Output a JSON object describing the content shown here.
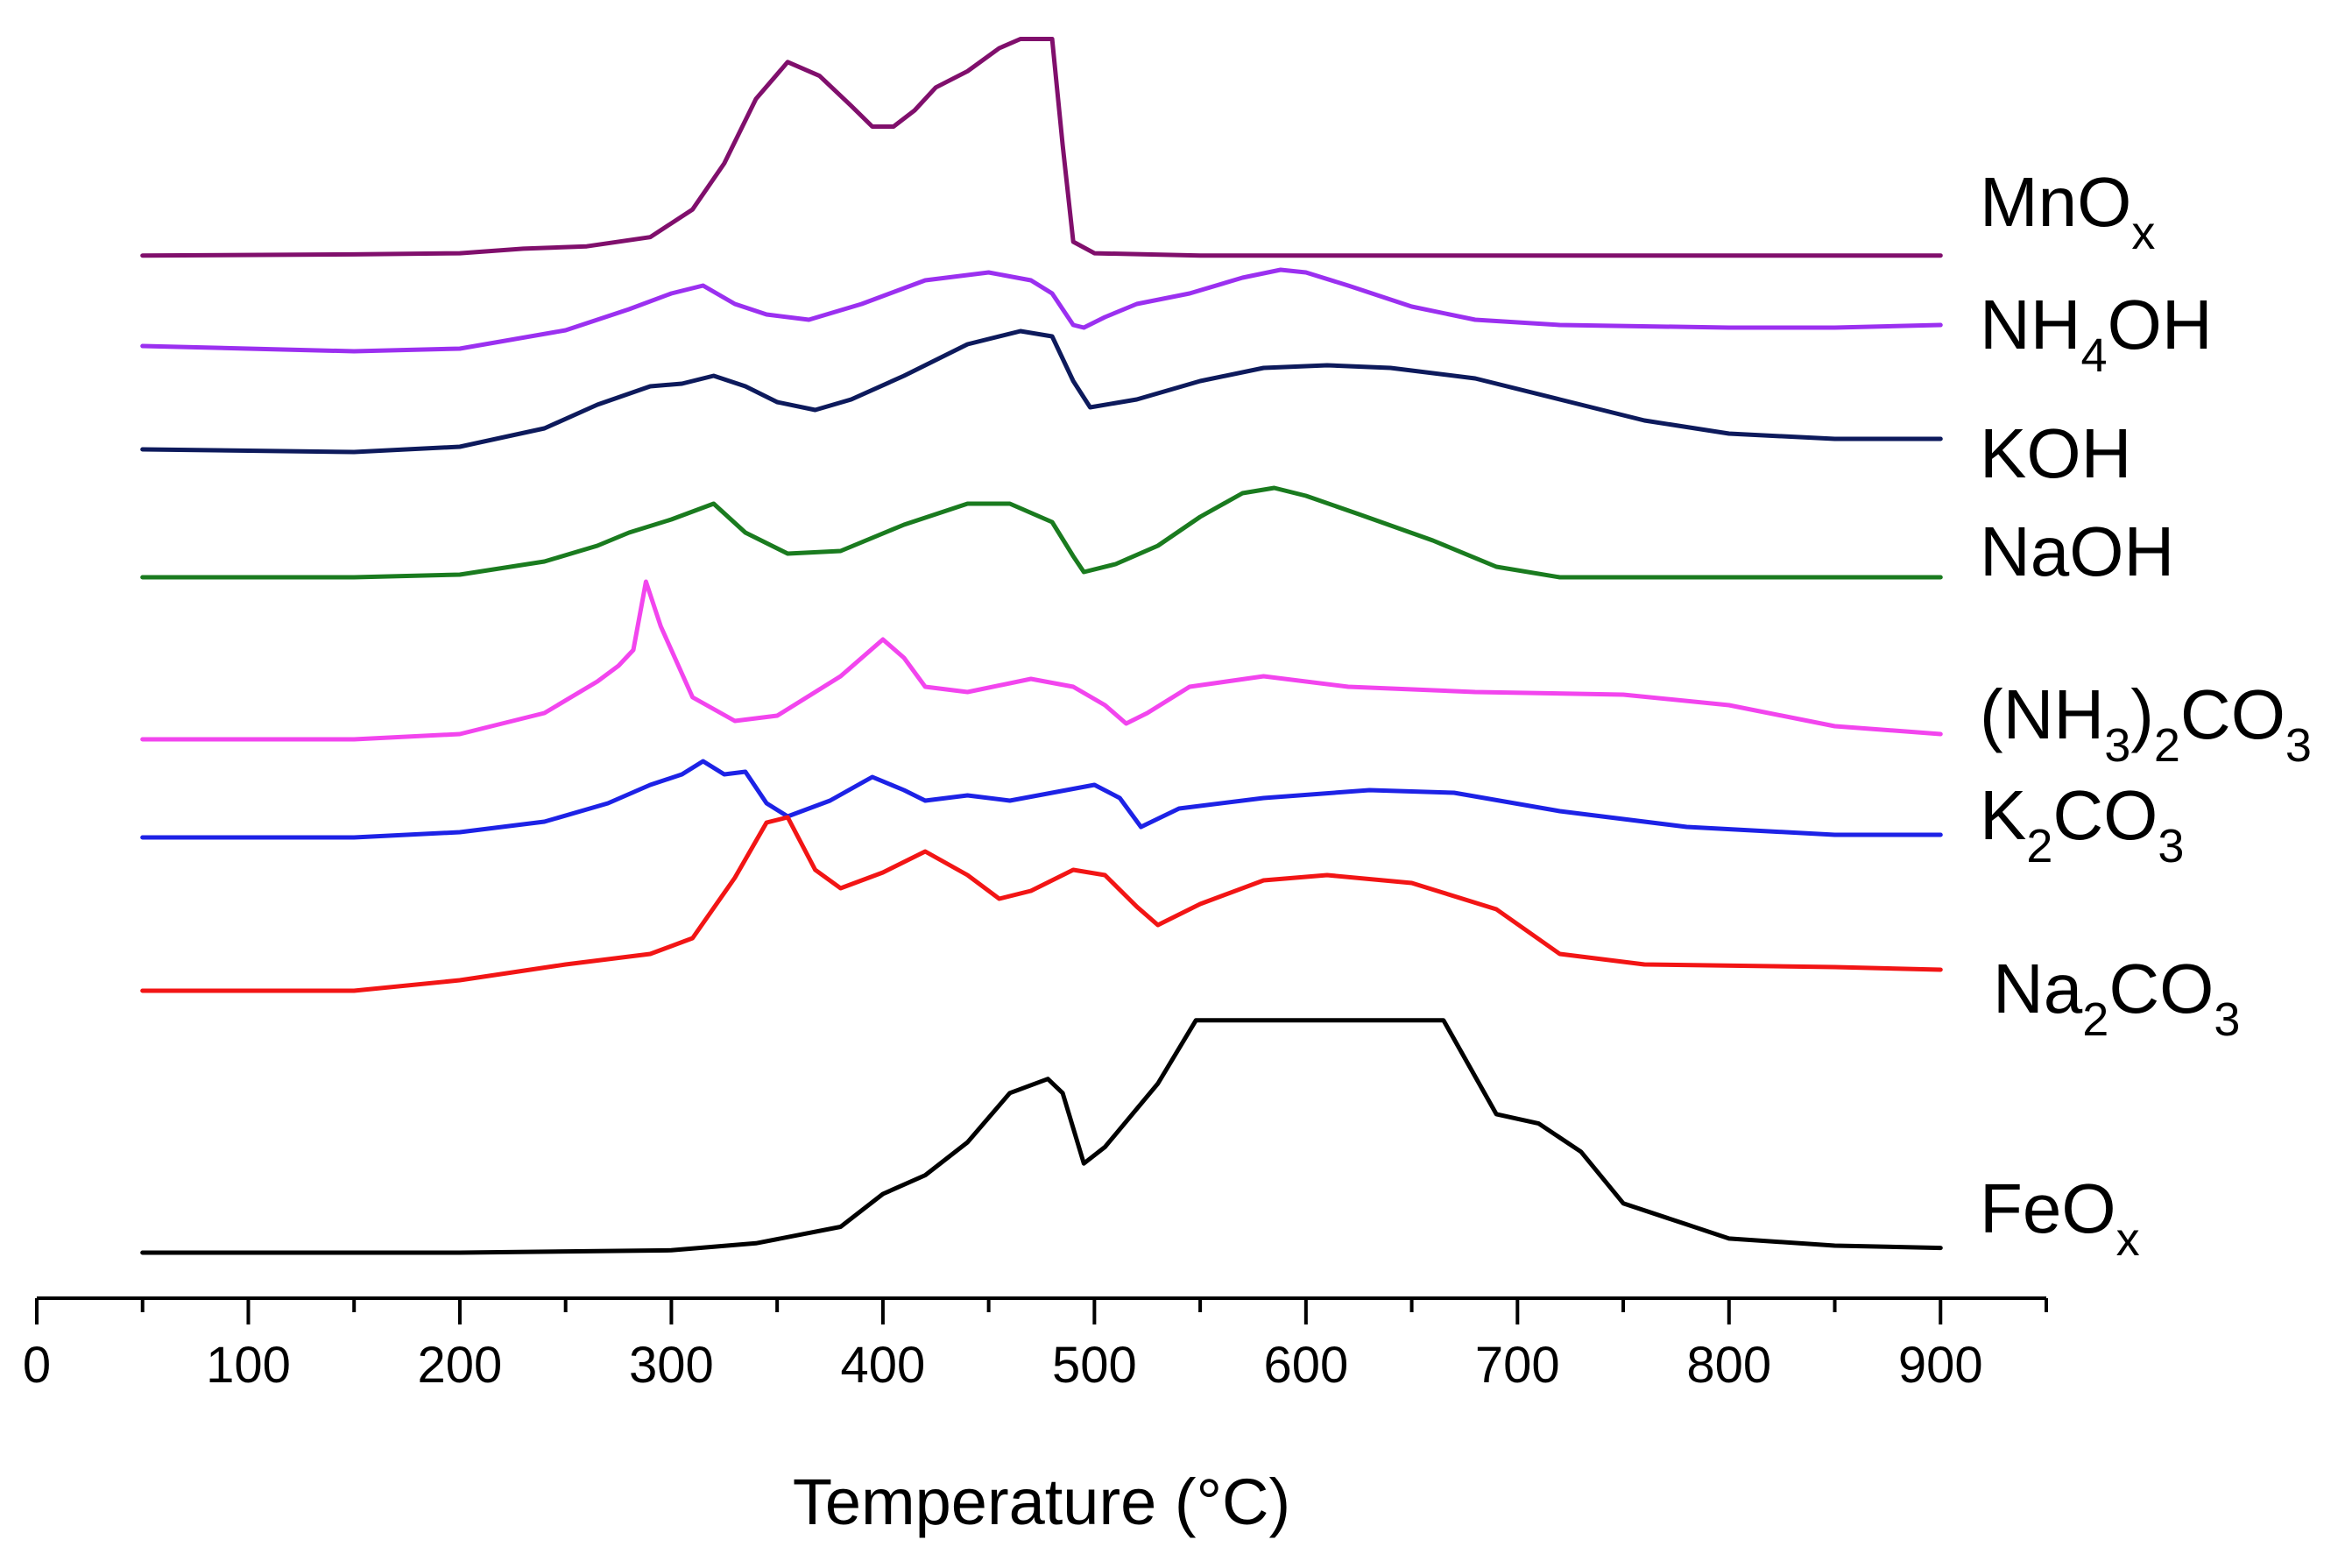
{
  "chart_data": {
    "type": "line",
    "title": "",
    "xlabel": "Temperature (°C)",
    "ylabel": "",
    "xlim": [
      0,
      950
    ],
    "x_ticks": [
      0,
      100,
      200,
      300,
      400,
      500,
      600,
      700,
      800,
      900
    ],
    "tick_labels": [
      "0",
      "100",
      "200",
      "300",
      "400",
      "500",
      "600",
      "700",
      "800",
      "900"
    ],
    "legend": "inline labels at right end of each curve",
    "grid": false,
    "y_axis_shown": false,
    "series": [
      {
        "name": "MnOx",
        "label_main": "MnO",
        "label_sub": "x",
        "label_tail": "",
        "color": "#800f6c",
        "points": [
          [
            50,
            0.02
          ],
          [
            150,
            0.025
          ],
          [
            200,
            0.03
          ],
          [
            230,
            0.05
          ],
          [
            260,
            0.06
          ],
          [
            290,
            0.1
          ],
          [
            310,
            0.22
          ],
          [
            325,
            0.42
          ],
          [
            340,
            0.7
          ],
          [
            355,
            0.86
          ],
          [
            370,
            0.8
          ],
          [
            385,
            0.67
          ],
          [
            395,
            0.58
          ],
          [
            405,
            0.58
          ],
          [
            415,
            0.65
          ],
          [
            425,
            0.75
          ],
          [
            440,
            0.82
          ],
          [
            455,
            0.92
          ],
          [
            465,
            0.96
          ],
          [
            480,
            0.96
          ],
          [
            485,
            0.5
          ],
          [
            490,
            0.08
          ],
          [
            500,
            0.03
          ],
          [
            550,
            0.02
          ],
          [
            700,
            0.02
          ],
          [
            900,
            0.02
          ]
        ]
      },
      {
        "name": "NH4OH",
        "label_main": "NH",
        "label_sub": "4",
        "label_tail": "OH",
        "color": "#9b30f0",
        "points": [
          [
            50,
            0.1
          ],
          [
            150,
            0.08
          ],
          [
            200,
            0.09
          ],
          [
            250,
            0.16
          ],
          [
            280,
            0.24
          ],
          [
            300,
            0.3
          ],
          [
            315,
            0.33
          ],
          [
            330,
            0.26
          ],
          [
            345,
            0.22
          ],
          [
            365,
            0.2
          ],
          [
            390,
            0.26
          ],
          [
            420,
            0.35
          ],
          [
            450,
            0.38
          ],
          [
            470,
            0.35
          ],
          [
            480,
            0.3
          ],
          [
            490,
            0.18
          ],
          [
            495,
            0.17
          ],
          [
            505,
            0.21
          ],
          [
            520,
            0.26
          ],
          [
            545,
            0.3
          ],
          [
            570,
            0.36
          ],
          [
            588,
            0.39
          ],
          [
            600,
            0.38
          ],
          [
            620,
            0.33
          ],
          [
            650,
            0.25
          ],
          [
            680,
            0.2
          ],
          [
            720,
            0.18
          ],
          [
            800,
            0.17
          ],
          [
            850,
            0.17
          ],
          [
            900,
            0.18
          ]
        ]
      },
      {
        "name": "KOH",
        "label_main": "KOH",
        "label_sub": "",
        "label_tail": "",
        "color": "#0d1a5c",
        "points": [
          [
            50,
            0.16
          ],
          [
            150,
            0.15
          ],
          [
            200,
            0.17
          ],
          [
            240,
            0.24
          ],
          [
            265,
            0.33
          ],
          [
            290,
            0.4
          ],
          [
            305,
            0.41
          ],
          [
            320,
            0.44
          ],
          [
            335,
            0.4
          ],
          [
            350,
            0.34
          ],
          [
            368,
            0.31
          ],
          [
            385,
            0.35
          ],
          [
            410,
            0.44
          ],
          [
            440,
            0.56
          ],
          [
            465,
            0.61
          ],
          [
            480,
            0.59
          ],
          [
            490,
            0.42
          ],
          [
            498,
            0.32
          ],
          [
            520,
            0.35
          ],
          [
            550,
            0.42
          ],
          [
            580,
            0.47
          ],
          [
            610,
            0.48
          ],
          [
            640,
            0.47
          ],
          [
            680,
            0.43
          ],
          [
            720,
            0.35
          ],
          [
            760,
            0.27
          ],
          [
            800,
            0.22
          ],
          [
            850,
            0.2
          ],
          [
            900,
            0.2
          ]
        ]
      },
      {
        "name": "NaOH",
        "label_main": "NaOH",
        "label_sub": "",
        "label_tail": "",
        "color": "#1a7b1f",
        "points": [
          [
            50,
            0.02
          ],
          [
            150,
            0.02
          ],
          [
            200,
            0.03
          ],
          [
            240,
            0.08
          ],
          [
            265,
            0.14
          ],
          [
            280,
            0.19
          ],
          [
            300,
            0.24
          ],
          [
            320,
            0.3
          ],
          [
            335,
            0.19
          ],
          [
            355,
            0.11
          ],
          [
            380,
            0.12
          ],
          [
            410,
            0.22
          ],
          [
            440,
            0.3
          ],
          [
            460,
            0.3
          ],
          [
            480,
            0.23
          ],
          [
            490,
            0.1
          ],
          [
            495,
            0.04
          ],
          [
            510,
            0.07
          ],
          [
            530,
            0.14
          ],
          [
            550,
            0.25
          ],
          [
            570,
            0.34
          ],
          [
            585,
            0.36
          ],
          [
            600,
            0.33
          ],
          [
            625,
            0.26
          ],
          [
            660,
            0.16
          ],
          [
            690,
            0.06
          ],
          [
            720,
            0.02
          ],
          [
            800,
            0.02
          ],
          [
            900,
            0.02
          ]
        ]
      },
      {
        "name": "(NH3)2CO3",
        "label_main": "(NH",
        "label_sub": "3",
        "label_tail": ")",
        "label_sub2": "2",
        "label_tail2": "CO",
        "label_sub3": "3",
        "color": "#f245ee",
        "points": [
          [
            50,
            0.02
          ],
          [
            150,
            0.02
          ],
          [
            200,
            0.04
          ],
          [
            240,
            0.12
          ],
          [
            265,
            0.24
          ],
          [
            275,
            0.3
          ],
          [
            282,
            0.36
          ],
          [
            288,
            0.62
          ],
          [
            295,
            0.45
          ],
          [
            310,
            0.18
          ],
          [
            330,
            0.09
          ],
          [
            350,
            0.11
          ],
          [
            380,
            0.26
          ],
          [
            400,
            0.4
          ],
          [
            410,
            0.33
          ],
          [
            420,
            0.22
          ],
          [
            440,
            0.2
          ],
          [
            470,
            0.25
          ],
          [
            490,
            0.22
          ],
          [
            505,
            0.15
          ],
          [
            515,
            0.08
          ],
          [
            525,
            0.12
          ],
          [
            545,
            0.22
          ],
          [
            580,
            0.26
          ],
          [
            620,
            0.22
          ],
          [
            680,
            0.2
          ],
          [
            750,
            0.19
          ],
          [
            800,
            0.15
          ],
          [
            850,
            0.07
          ],
          [
            900,
            0.04
          ]
        ]
      },
      {
        "name": "K2CO3",
        "label_main": "K",
        "label_sub": "2",
        "label_tail": "CO",
        "label_sub2": "3",
        "color": "#1d22e6",
        "points": [
          [
            50,
            0.02
          ],
          [
            150,
            0.02
          ],
          [
            200,
            0.04
          ],
          [
            240,
            0.08
          ],
          [
            270,
            0.15
          ],
          [
            290,
            0.22
          ],
          [
            305,
            0.26
          ],
          [
            315,
            0.31
          ],
          [
            325,
            0.26
          ],
          [
            335,
            0.27
          ],
          [
            345,
            0.15
          ],
          [
            355,
            0.1
          ],
          [
            375,
            0.16
          ],
          [
            395,
            0.25
          ],
          [
            410,
            0.2
          ],
          [
            420,
            0.16
          ],
          [
            440,
            0.18
          ],
          [
            460,
            0.16
          ],
          [
            480,
            0.19
          ],
          [
            500,
            0.22
          ],
          [
            512,
            0.17
          ],
          [
            522,
            0.06
          ],
          [
            540,
            0.13
          ],
          [
            580,
            0.17
          ],
          [
            630,
            0.2
          ],
          [
            670,
            0.19
          ],
          [
            720,
            0.12
          ],
          [
            780,
            0.06
          ],
          [
            850,
            0.03
          ],
          [
            900,
            0.03
          ]
        ]
      },
      {
        "name": "Na2CO3",
        "label_main": "Na",
        "label_sub": "2",
        "label_tail": "CO",
        "label_sub2": "3",
        "color": "#f21515",
        "points": [
          [
            50,
            0.02
          ],
          [
            150,
            0.02
          ],
          [
            200,
            0.06
          ],
          [
            250,
            0.12
          ],
          [
            290,
            0.16
          ],
          [
            310,
            0.22
          ],
          [
            330,
            0.45
          ],
          [
            345,
            0.66
          ],
          [
            355,
            0.68
          ],
          [
            368,
            0.48
          ],
          [
            380,
            0.41
          ],
          [
            400,
            0.47
          ],
          [
            420,
            0.55
          ],
          [
            440,
            0.46
          ],
          [
            455,
            0.37
          ],
          [
            470,
            0.4
          ],
          [
            490,
            0.48
          ],
          [
            505,
            0.46
          ],
          [
            520,
            0.34
          ],
          [
            530,
            0.27
          ],
          [
            550,
            0.35
          ],
          [
            580,
            0.44
          ],
          [
            610,
            0.46
          ],
          [
            650,
            0.43
          ],
          [
            690,
            0.33
          ],
          [
            720,
            0.16
          ],
          [
            760,
            0.12
          ],
          [
            850,
            0.11
          ],
          [
            900,
            0.1
          ]
        ]
      },
      {
        "name": "FeOx",
        "label_main": "FeO",
        "label_sub": "x",
        "label_tail": "",
        "color": "#000000",
        "points": [
          [
            50,
            0.0
          ],
          [
            200,
            0.0
          ],
          [
            300,
            0.01
          ],
          [
            340,
            0.04
          ],
          [
            380,
            0.11
          ],
          [
            400,
            0.25
          ],
          [
            420,
            0.33
          ],
          [
            440,
            0.47
          ],
          [
            460,
            0.68
          ],
          [
            478,
            0.74
          ],
          [
            485,
            0.68
          ],
          [
            495,
            0.38
          ],
          [
            505,
            0.45
          ],
          [
            530,
            0.72
          ],
          [
            548,
            0.99
          ],
          [
            600,
            0.99
          ],
          [
            665,
            0.99
          ],
          [
            690,
            0.59
          ],
          [
            710,
            0.55
          ],
          [
            730,
            0.43
          ],
          [
            750,
            0.21
          ],
          [
            780,
            0.12
          ],
          [
            800,
            0.06
          ],
          [
            850,
            0.03
          ],
          [
            900,
            0.02
          ]
        ]
      }
    ]
  }
}
